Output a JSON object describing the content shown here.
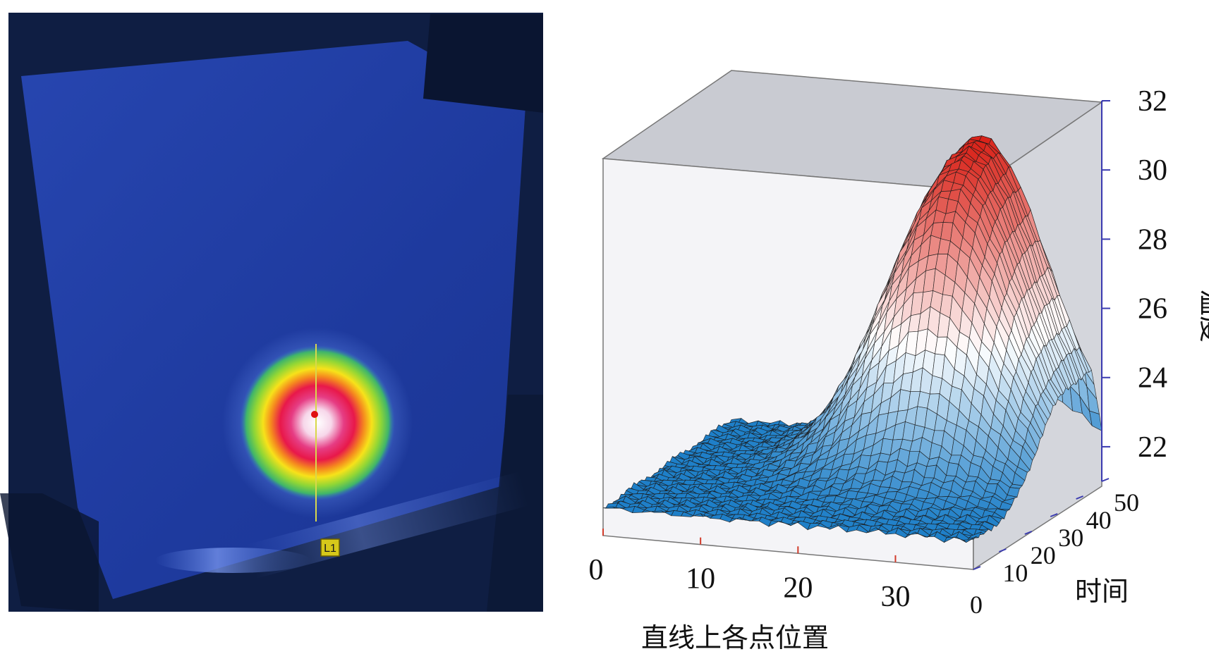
{
  "thermal_image": {
    "line_marker_label": "L1",
    "colors": {
      "background": "#0b1836",
      "plate": "#1f3fa6",
      "hotspot_core": "#ffffff",
      "hotspot_mid": "#e8184a",
      "ring_yellow": "#f7e21a",
      "ring_green": "#6fd13b",
      "marker_line": "#d8d84a",
      "marker_dot": "#e01010"
    }
  },
  "chart_data": {
    "type": "surface3d",
    "x_axis": {
      "label": "直线上各点位置",
      "ticks": [
        0,
        10,
        20,
        30
      ],
      "range": [
        0,
        38
      ]
    },
    "y_axis": {
      "label": "时间",
      "ticks": [
        0,
        10,
        20,
        30,
        40,
        50
      ],
      "range": [
        0,
        50
      ]
    },
    "z_axis": {
      "label": "温度",
      "ticks": [
        22,
        24,
        26,
        28,
        30,
        32
      ],
      "range": [
        21,
        32
      ]
    },
    "surface": {
      "baseline": 21.8,
      "peak_value": 31.0,
      "peak_position": 27,
      "peak_time": 45,
      "position_spread": 7,
      "time_rise": 12
    },
    "colormap": {
      "low": "#1e7fc8",
      "mid": "#ffffff",
      "high": "#d81e14"
    },
    "box_color": "#d9dadf"
  }
}
